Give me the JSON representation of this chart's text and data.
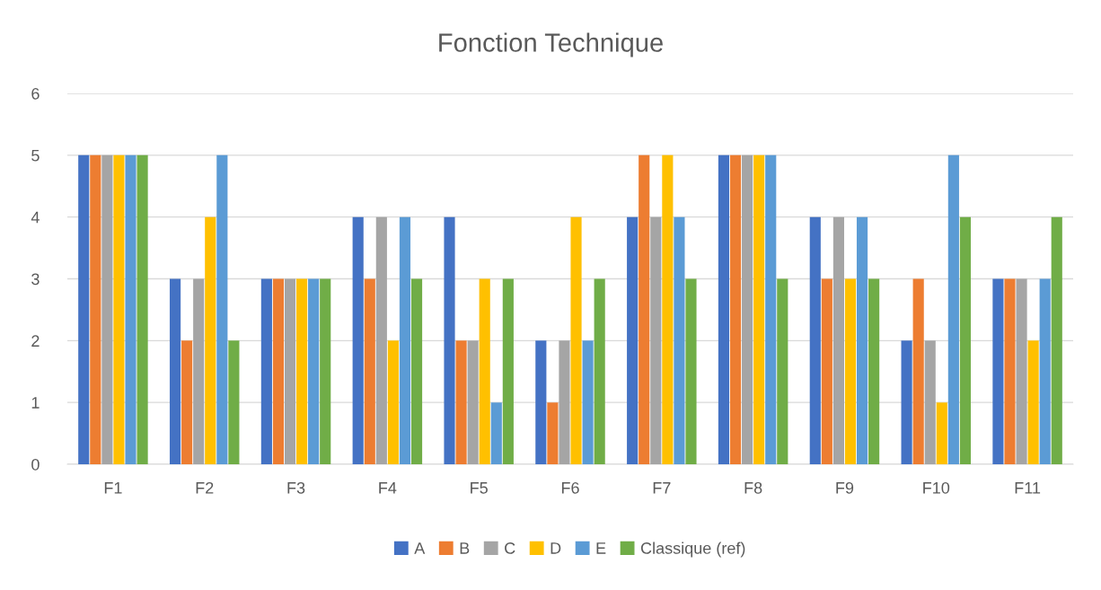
{
  "chart_data": {
    "type": "bar",
    "title": "Fonction Technique",
    "categories": [
      "F1",
      "F2",
      "F3",
      "F4",
      "F5",
      "F6",
      "F7",
      "F8",
      "F9",
      "F10",
      "F11"
    ],
    "series": [
      {
        "name": "A",
        "color": "#4472c4",
        "values": [
          5,
          3,
          3,
          4,
          4,
          2,
          4,
          5,
          4,
          2,
          3
        ]
      },
      {
        "name": "B",
        "color": "#ed7d31",
        "values": [
          5,
          2,
          3,
          3,
          2,
          1,
          5,
          5,
          3,
          3,
          3
        ]
      },
      {
        "name": "C",
        "color": "#a5a5a5",
        "values": [
          5,
          3,
          3,
          4,
          2,
          2,
          4,
          5,
          4,
          2,
          3
        ]
      },
      {
        "name": "D",
        "color": "#ffc000",
        "values": [
          5,
          4,
          3,
          2,
          3,
          4,
          5,
          5,
          3,
          1,
          2
        ]
      },
      {
        "name": "E",
        "color": "#5b9bd5",
        "values": [
          5,
          5,
          3,
          4,
          1,
          2,
          4,
          5,
          4,
          5,
          3
        ]
      },
      {
        "name": "Classique (ref)",
        "color": "#70ad47",
        "values": [
          5,
          2,
          3,
          3,
          3,
          3,
          3,
          3,
          3,
          4,
          4
        ]
      }
    ],
    "ylim": [
      0,
      6
    ],
    "yticks": [
      0,
      1,
      2,
      3,
      4,
      5,
      6
    ],
    "grid": "y",
    "legend": "bottom"
  }
}
